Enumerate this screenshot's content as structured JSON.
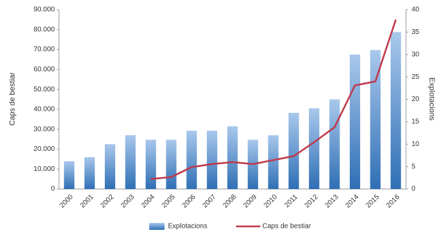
{
  "chart_data": {
    "type": "bar-line",
    "categories": [
      "2000",
      "2001",
      "2002",
      "2003",
      "2004",
      "2005",
      "2006",
      "2007",
      "2008",
      "2009",
      "2010",
      "2011",
      "2012",
      "2013",
      "2014",
      "2015",
      "2016"
    ],
    "series": [
      {
        "name": "Explotacions",
        "type": "bar",
        "axis": "y2",
        "color": "#4a86c8",
        "values": [
          6.2,
          7.1,
          10,
          12,
          11,
          11,
          13,
          13,
          14,
          11,
          12,
          17,
          18,
          20,
          30,
          31,
          35
        ]
      },
      {
        "name": "Caps de bestiar",
        "type": "line",
        "axis": "y",
        "color": "#c0394b",
        "values": [
          null,
          null,
          null,
          null,
          5000,
          6000,
          11000,
          12500,
          13500,
          12500,
          14500,
          16500,
          23500,
          31000,
          52000,
          54000,
          85000
        ]
      }
    ],
    "ylabel": "Caps de bestiar",
    "y2label": "Explotacions",
    "ylim": [
      0,
      90000
    ],
    "yticks": [
      0,
      {
        "value": 10000,
        "label": "10.000"
      },
      {
        "value": 20000,
        "label": "20.000"
      },
      {
        "value": 30000,
        "label": "30.000"
      },
      {
        "value": 40000,
        "label": "40.000"
      },
      {
        "value": 50000,
        "label": "50.000"
      },
      {
        "value": 60000,
        "label": "60.000"
      },
      {
        "value": 70000,
        "label": "70.000"
      },
      {
        "value": 80000,
        "label": "80.000"
      },
      {
        "value": 90000,
        "label": "90.000"
      }
    ],
    "y2lim": [
      0,
      40
    ],
    "y2ticks": [
      0,
      5,
      10,
      15,
      20,
      25,
      30,
      35,
      40
    ],
    "legend": "bottom"
  }
}
